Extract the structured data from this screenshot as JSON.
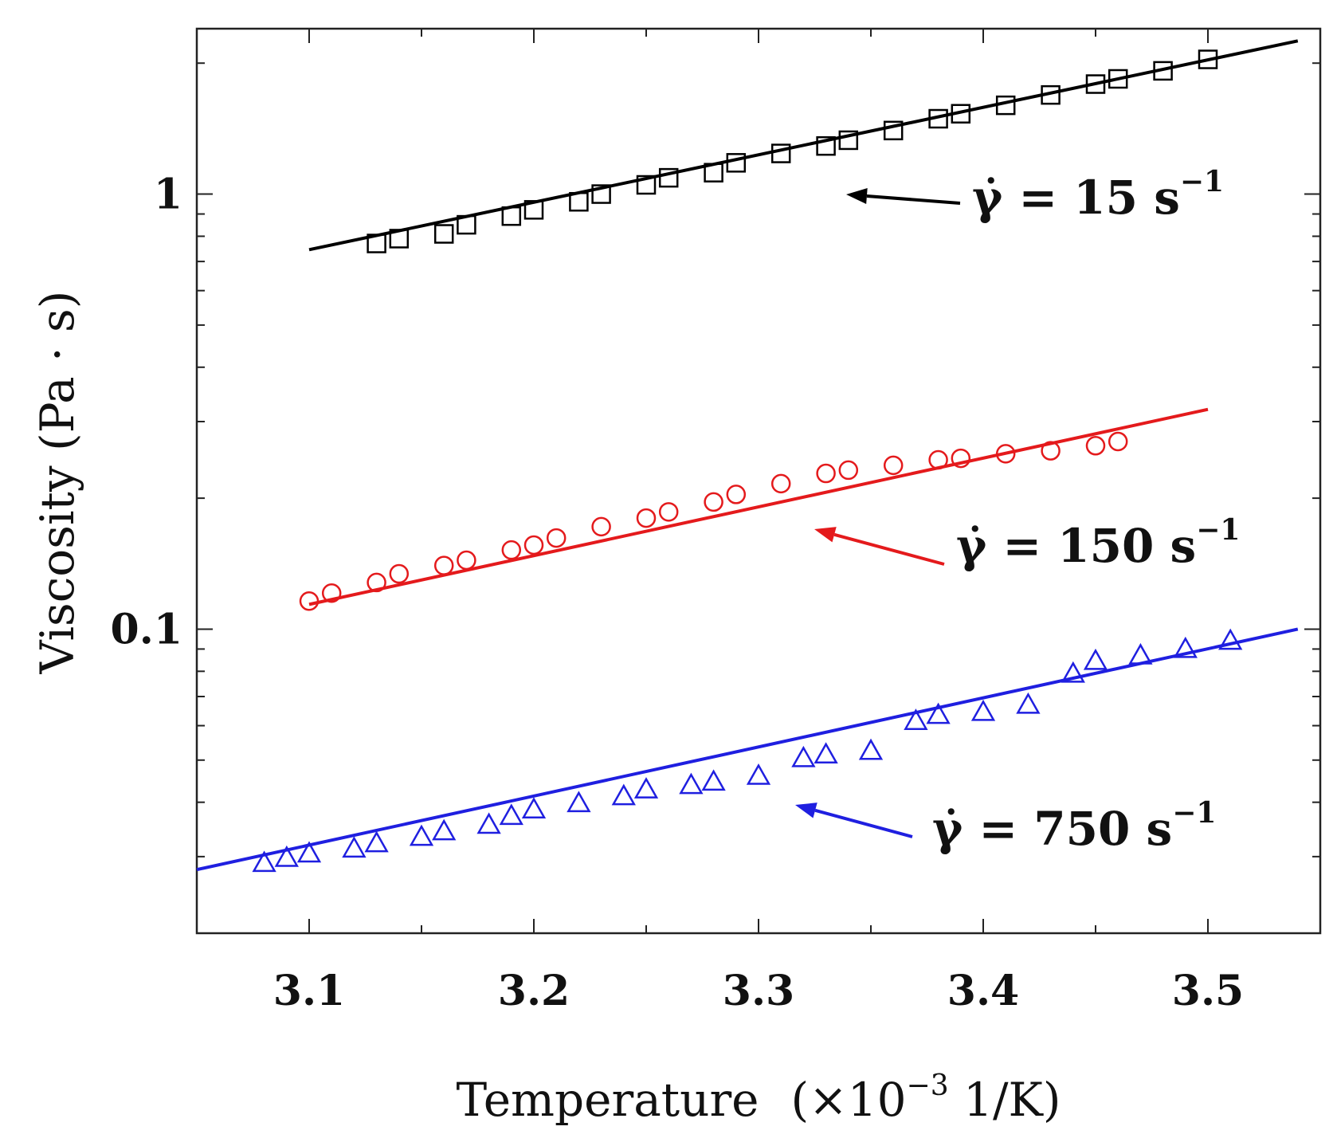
{
  "chart_data": {
    "type": "scatter",
    "title": "",
    "xlabel": "Temperature",
    "xlabel_unit": "(×10",
    "xlabel_exp": "−3",
    "xlabel_unit_tail": " 1/K)",
    "ylabel": "Viscosity (Pa · s)",
    "xlim": [
      3.05,
      3.55
    ],
    "ylim_log": [
      0.02,
      2.4
    ],
    "y_scale": "log",
    "x_ticks": [
      3.1,
      3.2,
      3.3,
      3.4,
      3.5
    ],
    "x_tick_labels": [
      "3.1",
      "3.2",
      "3.3",
      "3.4",
      "3.5"
    ],
    "y_ticks": [
      0.1,
      1
    ],
    "y_tick_labels": [
      "0.1",
      "1"
    ],
    "series": [
      {
        "name": "15 s^-1",
        "color": "#000000",
        "marker": "square",
        "x": [
          3.13,
          3.14,
          3.16,
          3.17,
          3.19,
          3.2,
          3.22,
          3.23,
          3.25,
          3.26,
          3.28,
          3.29,
          3.31,
          3.33,
          3.34,
          3.36,
          3.38,
          3.39,
          3.41,
          3.43,
          3.45,
          3.46,
          3.48,
          3.5
        ],
        "values": [
          0.77,
          0.79,
          0.81,
          0.85,
          0.89,
          0.92,
          0.96,
          1.0,
          1.05,
          1.09,
          1.12,
          1.18,
          1.24,
          1.29,
          1.33,
          1.4,
          1.49,
          1.53,
          1.6,
          1.69,
          1.79,
          1.84,
          1.92,
          2.04
        ],
        "fit": {
          "x": [
            3.1,
            3.54
          ],
          "values": [
            0.745,
            2.25
          ]
        }
      },
      {
        "name": "150 s^-1",
        "color": "#e41a1c",
        "marker": "circle",
        "x": [
          3.1,
          3.11,
          3.13,
          3.14,
          3.16,
          3.17,
          3.19,
          3.2,
          3.21,
          3.23,
          3.25,
          3.26,
          3.28,
          3.29,
          3.31,
          3.33,
          3.34,
          3.36,
          3.38,
          3.39,
          3.41,
          3.43,
          3.45,
          3.46
        ],
        "values": [
          0.116,
          0.121,
          0.128,
          0.134,
          0.14,
          0.144,
          0.152,
          0.156,
          0.162,
          0.172,
          0.18,
          0.186,
          0.196,
          0.204,
          0.216,
          0.228,
          0.232,
          0.238,
          0.245,
          0.247,
          0.253,
          0.257,
          0.264,
          0.27
        ],
        "fit": {
          "x": [
            3.1,
            3.5
          ],
          "values": [
            0.114,
            0.32
          ]
        }
      },
      {
        "name": "750 s^-1",
        "color": "#1f1fe0",
        "marker": "triangle",
        "x": [
          3.08,
          3.09,
          3.1,
          3.12,
          3.13,
          3.15,
          3.16,
          3.18,
          3.19,
          3.2,
          3.22,
          3.24,
          3.25,
          3.27,
          3.28,
          3.3,
          3.32,
          3.33,
          3.35,
          3.37,
          3.38,
          3.4,
          3.42,
          3.44,
          3.45,
          3.47,
          3.49,
          3.51
        ],
        "values": [
          0.029,
          0.0298,
          0.0305,
          0.0313,
          0.0322,
          0.0333,
          0.0343,
          0.0355,
          0.0372,
          0.0385,
          0.0398,
          0.0413,
          0.0428,
          0.0438,
          0.0446,
          0.046,
          0.0505,
          0.0515,
          0.0525,
          0.0615,
          0.0635,
          0.0645,
          0.067,
          0.079,
          0.0845,
          0.087,
          0.09,
          0.094
        ],
        "fit": {
          "x": [
            3.05,
            3.54
          ],
          "values": [
            0.028,
            0.1
          ]
        }
      }
    ],
    "annotations": [
      {
        "prefix": "γ̇ = ",
        "rate": "15",
        "unit": " s",
        "exp": "−1",
        "color": "#000000",
        "series": "15 s^-1"
      },
      {
        "prefix": "γ̇ = ",
        "rate": "150",
        "unit": " s",
        "exp": "−1",
        "color": "#e41a1c",
        "series": "150 s^-1"
      },
      {
        "prefix": "γ̇ = ",
        "rate": "750",
        "unit": " s",
        "exp": "−1",
        "color": "#1f1fe0",
        "series": "750 s^-1"
      }
    ]
  }
}
